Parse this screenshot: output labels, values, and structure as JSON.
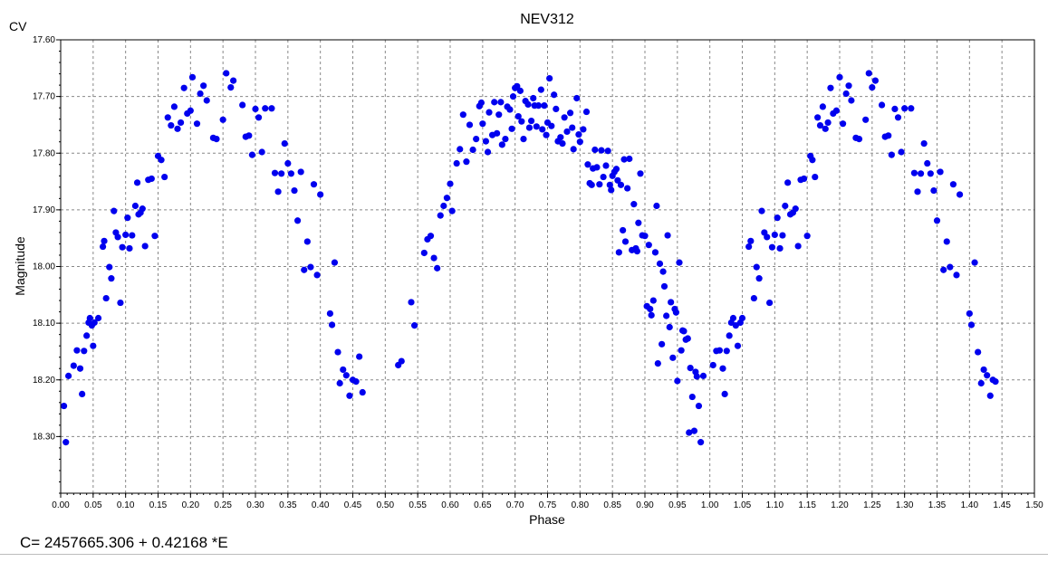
{
  "chart_data": {
    "type": "scatter",
    "title": "NEV312",
    "filter_label": "CV",
    "xlabel": "Phase",
    "ylabel": "Magnitude",
    "xlim": [
      0.0,
      1.5
    ],
    "ylim": [
      17.6,
      18.4
    ],
    "y_inverted": true,
    "grid": true,
    "x_ticks": [
      "0.00",
      "0.05",
      "0.10",
      "0.15",
      "0.20",
      "0.25",
      "0.30",
      "0.35",
      "0.40",
      "0.45",
      "0.50",
      "0.55",
      "0.60",
      "0.65",
      "0.70",
      "0.75",
      "0.80",
      "0.85",
      "0.90",
      "0.95",
      "1.00",
      "1.05",
      "1.10",
      "1.15",
      "1.20",
      "1.25",
      "1.30",
      "1.35",
      "1.40",
      "1.45",
      "1.50"
    ],
    "y_ticks": [
      "17.60",
      "17.70",
      "17.80",
      "17.90",
      "18.00",
      "18.10",
      "18.20",
      "18.30"
    ],
    "point_color": "#0000ee",
    "formula": "C= 2457665.306 + 0.42168 *E",
    "points": [
      [
        0.005,
        18.246
      ],
      [
        0.008,
        18.31
      ],
      [
        0.012,
        18.193
      ],
      [
        0.02,
        18.175
      ],
      [
        0.025,
        18.148
      ],
      [
        0.03,
        18.18
      ],
      [
        0.033,
        18.225
      ],
      [
        0.036,
        18.149
      ],
      [
        0.04,
        18.122
      ],
      [
        0.043,
        18.099
      ],
      [
        0.045,
        18.091
      ],
      [
        0.048,
        18.104
      ],
      [
        0.05,
        18.14
      ],
      [
        0.052,
        18.099
      ],
      [
        0.058,
        18.091
      ],
      [
        0.065,
        17.965
      ],
      [
        0.067,
        17.955
      ],
      [
        0.07,
        18.056
      ],
      [
        0.075,
        18.001
      ],
      [
        0.078,
        18.021
      ],
      [
        0.082,
        17.902
      ],
      [
        0.085,
        17.94
      ],
      [
        0.088,
        17.948
      ],
      [
        0.092,
        18.064
      ],
      [
        0.095,
        17.966
      ],
      [
        0.1,
        17.944
      ],
      [
        0.103,
        17.914
      ],
      [
        0.106,
        17.968
      ],
      [
        0.11,
        17.945
      ],
      [
        0.115,
        17.893
      ],
      [
        0.118,
        17.852
      ],
      [
        0.12,
        17.908
      ],
      [
        0.123,
        17.905
      ],
      [
        0.126,
        17.898
      ],
      [
        0.13,
        17.964
      ],
      [
        0.135,
        17.847
      ],
      [
        0.14,
        17.845
      ],
      [
        0.145,
        17.946
      ],
      [
        0.15,
        17.805
      ],
      [
        0.155,
        17.812
      ],
      [
        0.16,
        17.842
      ],
      [
        0.165,
        17.737
      ],
      [
        0.17,
        17.751
      ],
      [
        0.175,
        17.718
      ],
      [
        0.18,
        17.757
      ],
      [
        0.185,
        17.746
      ],
      [
        0.19,
        17.685
      ],
      [
        0.195,
        17.73
      ],
      [
        0.2,
        17.725
      ],
      [
        0.203,
        17.666
      ],
      [
        0.21,
        17.748
      ],
      [
        0.215,
        17.695
      ],
      [
        0.22,
        17.681
      ],
      [
        0.225,
        17.707
      ],
      [
        0.235,
        17.773
      ],
      [
        0.24,
        17.775
      ],
      [
        0.25,
        17.741
      ],
      [
        0.255,
        17.659
      ],
      [
        0.262,
        17.684
      ],
      [
        0.266,
        17.672
      ],
      [
        0.28,
        17.715
      ],
      [
        0.285,
        17.771
      ],
      [
        0.29,
        17.769
      ],
      [
        0.295,
        17.803
      ],
      [
        0.3,
        17.722
      ],
      [
        0.305,
        17.737
      ],
      [
        0.31,
        17.798
      ],
      [
        0.315,
        17.721
      ],
      [
        0.325,
        17.721
      ],
      [
        0.33,
        17.835
      ],
      [
        0.335,
        17.868
      ],
      [
        0.34,
        17.836
      ],
      [
        0.345,
        17.783
      ],
      [
        0.35,
        17.818
      ],
      [
        0.355,
        17.836
      ],
      [
        0.36,
        17.866
      ],
      [
        0.365,
        17.919
      ],
      [
        0.37,
        17.833
      ],
      [
        0.375,
        18.006
      ],
      [
        0.38,
        17.956
      ],
      [
        0.385,
        18.001
      ],
      [
        0.39,
        17.855
      ],
      [
        0.395,
        18.015
      ],
      [
        0.4,
        17.873
      ],
      [
        0.415,
        18.083
      ],
      [
        0.418,
        18.103
      ],
      [
        0.422,
        17.993
      ],
      [
        0.427,
        18.151
      ],
      [
        0.43,
        18.206
      ],
      [
        0.435,
        18.182
      ],
      [
        0.44,
        18.192
      ],
      [
        0.445,
        18.228
      ],
      [
        0.45,
        18.2
      ],
      [
        0.455,
        18.203
      ],
      [
        0.46,
        18.159
      ],
      [
        0.465,
        18.222
      ],
      [
        0.52,
        18.174
      ],
      [
        0.525,
        18.167
      ],
      [
        0.54,
        18.063
      ],
      [
        0.545,
        18.104
      ],
      [
        0.56,
        17.976
      ],
      [
        0.565,
        17.952
      ],
      [
        0.57,
        17.946
      ],
      [
        0.575,
        17.985
      ],
      [
        0.58,
        18.003
      ],
      [
        0.585,
        17.91
      ],
      [
        0.59,
        17.893
      ],
      [
        0.595,
        17.879
      ],
      [
        0.6,
        17.854
      ],
      [
        0.603,
        17.902
      ],
      [
        0.61,
        17.818
      ],
      [
        0.615,
        17.793
      ],
      [
        0.62,
        17.732
      ],
      [
        0.625,
        17.815
      ],
      [
        0.63,
        17.75
      ],
      [
        0.635,
        17.794
      ],
      [
        0.64,
        17.775
      ],
      [
        0.645,
        17.717
      ],
      [
        0.648,
        17.711
      ],
      [
        0.65,
        17.748
      ],
      [
        0.655,
        17.779
      ],
      [
        0.658,
        17.798
      ],
      [
        0.66,
        17.728
      ],
      [
        0.665,
        17.768
      ],
      [
        0.668,
        17.71
      ],
      [
        0.672,
        17.765
      ],
      [
        0.675,
        17.732
      ],
      [
        0.678,
        17.71
      ],
      [
        0.68,
        17.785
      ],
      [
        0.685,
        17.775
      ],
      [
        0.688,
        17.718
      ],
      [
        0.692,
        17.723
      ],
      [
        0.695,
        17.757
      ],
      [
        0.697,
        17.7
      ],
      [
        0.7,
        17.685
      ],
      [
        0.703,
        17.682
      ],
      [
        0.705,
        17.735
      ],
      [
        0.708,
        17.69
      ],
      [
        0.71,
        17.744
      ],
      [
        0.713,
        17.775
      ],
      [
        0.716,
        17.708
      ],
      [
        0.72,
        17.714
      ],
      [
        0.722,
        17.755
      ],
      [
        0.725,
        17.743
      ],
      [
        0.728,
        17.703
      ],
      [
        0.73,
        17.716
      ],
      [
        0.733,
        17.753
      ],
      [
        0.736,
        17.716
      ],
      [
        0.74,
        17.688
      ],
      [
        0.742,
        17.758
      ],
      [
        0.745,
        17.716
      ],
      [
        0.748,
        17.768
      ],
      [
        0.75,
        17.746
      ],
      [
        0.753,
        17.668
      ],
      [
        0.756,
        17.752
      ],
      [
        0.76,
        17.697
      ],
      [
        0.763,
        17.722
      ],
      [
        0.766,
        17.779
      ],
      [
        0.77,
        17.772
      ],
      [
        0.773,
        17.783
      ],
      [
        0.776,
        17.737
      ],
      [
        0.78,
        17.762
      ],
      [
        0.785,
        17.729
      ],
      [
        0.788,
        17.755
      ],
      [
        0.79,
        17.793
      ],
      [
        0.795,
        17.703
      ],
      [
        0.798,
        17.767
      ],
      [
        0.8,
        17.78
      ],
      [
        0.805,
        17.758
      ],
      [
        0.81,
        17.727
      ],
      [
        0.812,
        17.82
      ],
      [
        0.815,
        17.853
      ],
      [
        0.818,
        17.856
      ],
      [
        0.82,
        17.827
      ],
      [
        0.823,
        17.794
      ],
      [
        0.826,
        17.825
      ],
      [
        0.83,
        17.855
      ],
      [
        0.833,
        17.795
      ],
      [
        0.836,
        17.842
      ],
      [
        0.84,
        17.822
      ],
      [
        0.843,
        17.796
      ],
      [
        0.846,
        17.856
      ],
      [
        0.848,
        17.865
      ],
      [
        0.85,
        17.84
      ],
      [
        0.853,
        17.833
      ],
      [
        0.856,
        17.828
      ],
      [
        0.858,
        17.848
      ],
      [
        0.86,
        17.975
      ],
      [
        0.863,
        17.856
      ],
      [
        0.866,
        17.936
      ],
      [
        0.868,
        17.811
      ],
      [
        0.87,
        17.956
      ],
      [
        0.873,
        17.862
      ],
      [
        0.876,
        17.81
      ],
      [
        0.88,
        17.971
      ],
      [
        0.883,
        17.89
      ],
      [
        0.886,
        17.968
      ],
      [
        0.888,
        17.973
      ],
      [
        0.89,
        17.923
      ],
      [
        0.893,
        17.836
      ],
      [
        0.896,
        17.945
      ],
      [
        0.9,
        17.946
      ],
      [
        0.903,
        18.07
      ],
      [
        0.906,
        17.962
      ],
      [
        0.908,
        18.075
      ],
      [
        0.91,
        18.086
      ],
      [
        0.913,
        18.06
      ],
      [
        0.916,
        17.975
      ],
      [
        0.918,
        17.893
      ],
      [
        0.92,
        18.171
      ],
      [
        0.923,
        17.995
      ],
      [
        0.926,
        18.137
      ],
      [
        0.928,
        18.009
      ],
      [
        0.93,
        18.035
      ],
      [
        0.933,
        18.087
      ],
      [
        0.935,
        17.945
      ],
      [
        0.938,
        18.107
      ],
      [
        0.94,
        18.063
      ],
      [
        0.943,
        18.161
      ],
      [
        0.946,
        18.075
      ],
      [
        0.948,
        18.081
      ],
      [
        0.95,
        18.202
      ],
      [
        0.953,
        17.993
      ],
      [
        0.956,
        18.148
      ],
      [
        0.958,
        18.113
      ],
      [
        0.96,
        18.114
      ],
      [
        0.963,
        18.129
      ],
      [
        0.966,
        18.127
      ],
      [
        0.968,
        18.293
      ],
      [
        0.97,
        18.179
      ],
      [
        0.973,
        18.23
      ],
      [
        0.976,
        18.29
      ],
      [
        0.978,
        18.186
      ],
      [
        0.98,
        18.194
      ],
      [
        0.983,
        18.246
      ],
      [
        0.986,
        18.31
      ],
      [
        0.99,
        18.193
      ],
      [
        1.005,
        18.174
      ],
      [
        1.01,
        18.149
      ],
      [
        1.015,
        18.148
      ],
      [
        1.02,
        18.18
      ],
      [
        1.023,
        18.225
      ],
      [
        1.026,
        18.149
      ],
      [
        1.03,
        18.122
      ],
      [
        1.033,
        18.099
      ],
      [
        1.036,
        18.091
      ],
      [
        1.04,
        18.104
      ],
      [
        1.043,
        18.14
      ],
      [
        1.047,
        18.099
      ],
      [
        1.05,
        18.091
      ],
      [
        1.06,
        17.965
      ],
      [
        1.063,
        17.955
      ],
      [
        1.068,
        18.056
      ],
      [
        1.072,
        18.001
      ],
      [
        1.076,
        18.021
      ],
      [
        1.08,
        17.902
      ],
      [
        1.084,
        17.94
      ],
      [
        1.088,
        17.948
      ],
      [
        1.092,
        18.064
      ],
      [
        1.096,
        17.966
      ],
      [
        1.1,
        17.944
      ],
      [
        1.104,
        17.914
      ],
      [
        1.108,
        17.968
      ],
      [
        1.112,
        17.945
      ],
      [
        1.116,
        17.893
      ],
      [
        1.12,
        17.852
      ],
      [
        1.124,
        17.908
      ],
      [
        1.128,
        17.905
      ],
      [
        1.132,
        17.898
      ],
      [
        1.136,
        17.964
      ],
      [
        1.14,
        17.847
      ],
      [
        1.145,
        17.845
      ],
      [
        1.15,
        17.946
      ],
      [
        1.155,
        17.805
      ],
      [
        1.158,
        17.812
      ],
      [
        1.162,
        17.842
      ],
      [
        1.166,
        17.737
      ],
      [
        1.17,
        17.751
      ],
      [
        1.174,
        17.718
      ],
      [
        1.178,
        17.757
      ],
      [
        1.182,
        17.746
      ],
      [
        1.186,
        17.685
      ],
      [
        1.19,
        17.73
      ],
      [
        1.195,
        17.725
      ],
      [
        1.2,
        17.666
      ],
      [
        1.205,
        17.748
      ],
      [
        1.21,
        17.695
      ],
      [
        1.214,
        17.681
      ],
      [
        1.218,
        17.707
      ],
      [
        1.225,
        17.773
      ],
      [
        1.23,
        17.775
      ],
      [
        1.24,
        17.741
      ],
      [
        1.245,
        17.659
      ],
      [
        1.25,
        17.684
      ],
      [
        1.255,
        17.672
      ],
      [
        1.265,
        17.715
      ],
      [
        1.27,
        17.771
      ],
      [
        1.275,
        17.769
      ],
      [
        1.28,
        17.803
      ],
      [
        1.285,
        17.722
      ],
      [
        1.29,
        17.737
      ],
      [
        1.295,
        17.798
      ],
      [
        1.3,
        17.721
      ],
      [
        1.31,
        17.721
      ],
      [
        1.315,
        17.835
      ],
      [
        1.32,
        17.868
      ],
      [
        1.325,
        17.836
      ],
      [
        1.33,
        17.783
      ],
      [
        1.335,
        17.818
      ],
      [
        1.34,
        17.836
      ],
      [
        1.345,
        17.866
      ],
      [
        1.35,
        17.919
      ],
      [
        1.355,
        17.833
      ],
      [
        1.36,
        18.006
      ],
      [
        1.365,
        17.956
      ],
      [
        1.37,
        18.001
      ],
      [
        1.375,
        17.855
      ],
      [
        1.38,
        18.015
      ],
      [
        1.385,
        17.873
      ],
      [
        1.4,
        18.083
      ],
      [
        1.403,
        18.103
      ],
      [
        1.408,
        17.993
      ],
      [
        1.413,
        18.151
      ],
      [
        1.418,
        18.206
      ],
      [
        1.422,
        18.182
      ],
      [
        1.427,
        18.192
      ],
      [
        1.432,
        18.228
      ],
      [
        1.436,
        18.2
      ],
      [
        1.44,
        18.203
      ]
    ]
  }
}
